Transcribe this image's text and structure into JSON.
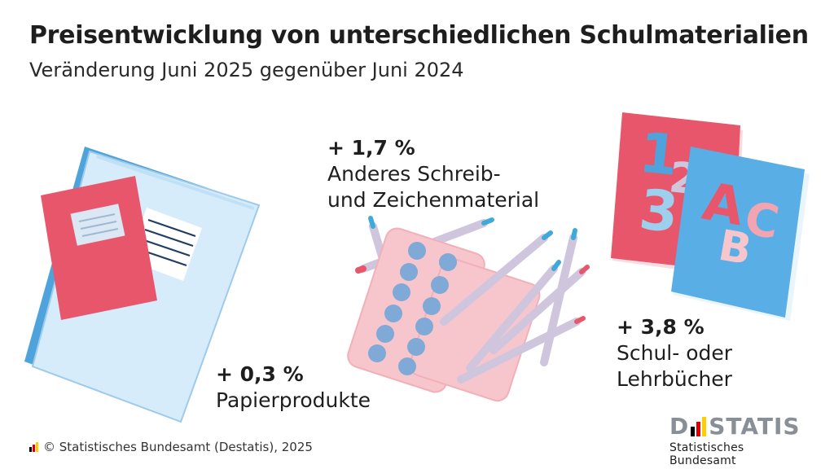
{
  "header": {
    "title": "Preisentwicklung von unterschiedlichen Schulmaterialien",
    "subtitle": "Veränderung Juni 2025 gegenüber Juni 2024"
  },
  "chart_data": {
    "type": "infographic",
    "title": "Preisentwicklung von unterschiedlichen Schulmaterialien",
    "subtitle": "Veränderung Juni 2025 gegenüber Juni 2024",
    "unit": "%",
    "items": [
      {
        "name": "Papierprodukte",
        "value": 0.3,
        "label": "+ 0,3 %",
        "icon": "notebook-icon"
      },
      {
        "name": "Anderes Schreib- und Zeichenmaterial",
        "name_lines": [
          "Anderes Schreib-",
          "und Zeichenmaterial"
        ],
        "value": 1.7,
        "label": "+ 1,7 %",
        "icon": "pencils-icon"
      },
      {
        "name": "Schul- oder Lehrbücher",
        "name_lines": [
          "Schul- oder",
          "Lehrbücher"
        ],
        "value": 3.8,
        "label": "+ 3,8 %",
        "icon": "books-icon"
      }
    ]
  },
  "colors": {
    "red": "#e8566c",
    "light_blue": "#d6ecfa",
    "blue": "#4ea3dd",
    "pink": "#f7c6cc",
    "dot_blue": "#7fa9d6",
    "logo_grey": "#888f96"
  },
  "footer": {
    "copyright": "© Statistisches Bundesamt (Destatis), 2025",
    "logo_text_left": "D",
    "logo_text_right": "STATIS",
    "logo_subtitle": "Statistisches Bundesamt"
  }
}
